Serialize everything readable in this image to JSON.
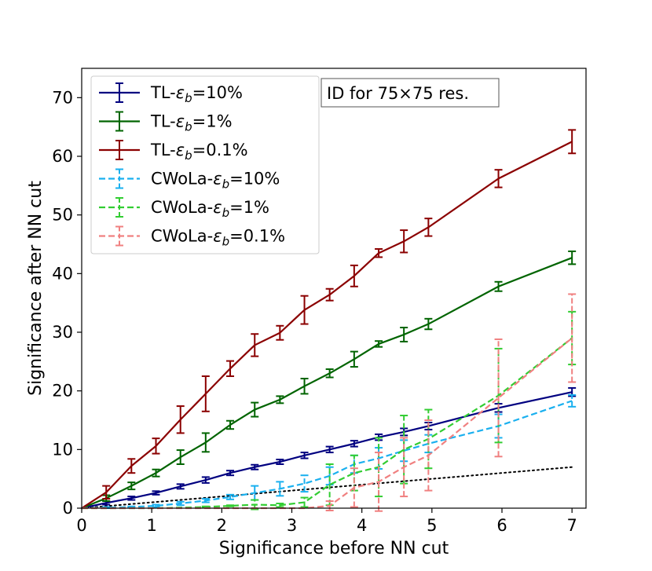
{
  "chart_data": {
    "type": "line",
    "xlabel": "Significance before NN cut",
    "ylabel": "Significance after NN cut",
    "xlim": [
      0,
      7.2
    ],
    "ylim": [
      0,
      75
    ],
    "xticks": [
      0,
      1,
      2,
      3,
      4,
      5,
      6,
      7
    ],
    "yticks": [
      0,
      10,
      20,
      30,
      40,
      50,
      60,
      70
    ],
    "grid": false,
    "legend_position": "top-left",
    "annotation": "ID for 75×75 res.",
    "x": [
      0,
      0.35,
      0.71,
      1.06,
      1.41,
      1.77,
      2.12,
      2.47,
      2.83,
      3.18,
      3.54,
      3.89,
      4.24,
      4.6,
      4.95,
      5.95,
      7.0
    ],
    "series": [
      {
        "name": "TL-εb=10%",
        "color": "#000080",
        "style": "solid",
        "values": [
          0,
          0.9,
          1.7,
          2.6,
          3.7,
          4.8,
          6.0,
          7.0,
          7.9,
          9.0,
          10.0,
          11.0,
          12.1,
          13.0,
          14.0,
          17.1,
          19.8
        ],
        "errors": [
          0,
          0.3,
          0.3,
          0.3,
          0.4,
          0.5,
          0.4,
          0.4,
          0.4,
          0.5,
          0.5,
          0.5,
          0.5,
          0.6,
          0.6,
          0.7,
          0.7
        ]
      },
      {
        "name": "TL-εb=1%",
        "color": "#006400",
        "style": "solid",
        "values": [
          0,
          1.7,
          3.8,
          6.0,
          8.7,
          11.2,
          14.2,
          16.8,
          18.5,
          20.8,
          23.0,
          25.4,
          28.0,
          29.6,
          31.4,
          37.8,
          42.7
        ],
        "errors": [
          0,
          0.5,
          0.6,
          0.6,
          1.2,
          1.6,
          0.7,
          1.2,
          0.6,
          1.3,
          0.7,
          1.3,
          0.5,
          1.2,
          0.9,
          0.8,
          1.1
        ]
      },
      {
        "name": "TL-εb=0.1%",
        "color": "#8b0000",
        "style": "solid",
        "values": [
          0,
          2.7,
          7.2,
          10.6,
          15.1,
          19.5,
          23.8,
          27.8,
          29.9,
          33.8,
          36.4,
          39.6,
          43.5,
          45.5,
          47.9,
          56.2,
          62.5
        ],
        "errors": [
          0,
          1.1,
          1.2,
          1.3,
          2.3,
          3.0,
          1.3,
          1.9,
          1.2,
          2.4,
          1.0,
          1.8,
          0.7,
          1.9,
          1.5,
          1.5,
          2.0
        ]
      },
      {
        "name": "CWoLa-εb=10%",
        "color": "#1ab0ef",
        "style": "dashed",
        "values": [
          0,
          0.1,
          0.2,
          0.4,
          0.8,
          1.3,
          1.9,
          2.6,
          3.3,
          4.2,
          5.5,
          7.5,
          8.5,
          9.8,
          11.0,
          14.0,
          18.3
        ],
        "errors": [
          0,
          0.1,
          0.1,
          0.2,
          0.3,
          0.3,
          0.4,
          1.2,
          1.2,
          1.4,
          1.5,
          1.5,
          1.8,
          1.8,
          1.5,
          2.0,
          1.0
        ]
      },
      {
        "name": "CWoLa-εb=1%",
        "color": "#32cd32",
        "style": "dashed",
        "values": [
          0,
          0.0,
          0.0,
          0.0,
          0.1,
          0.2,
          0.4,
          0.6,
          0.5,
          1.0,
          4.0,
          6.0,
          7.0,
          10.0,
          11.8,
          19.2,
          29.0
        ],
        "errors": [
          0,
          0,
          0,
          0,
          0,
          0.1,
          0.1,
          0.8,
          0.3,
          0.8,
          3.5,
          3.0,
          5.0,
          5.8,
          5.0,
          8.0,
          4.5
        ]
      },
      {
        "name": "CWoLa-εb=0.1%",
        "color": "#f08080",
        "style": "dashed",
        "values": [
          0,
          0.0,
          0.0,
          0.0,
          0.0,
          0.0,
          0.0,
          0.0,
          0.0,
          0.0,
          0.4,
          3.5,
          4.5,
          7.0,
          9.0,
          18.8,
          29.0
        ],
        "errors": [
          0,
          0,
          0,
          0,
          0,
          0,
          0,
          0,
          0,
          0,
          0.8,
          3.3,
          5.0,
          5.0,
          6.0,
          10.0,
          7.5
        ]
      }
    ],
    "reference_line": {
      "style": "dotted",
      "color": "#000000",
      "x": [
        0,
        7.0
      ],
      "y": [
        0,
        7.0
      ]
    }
  }
}
